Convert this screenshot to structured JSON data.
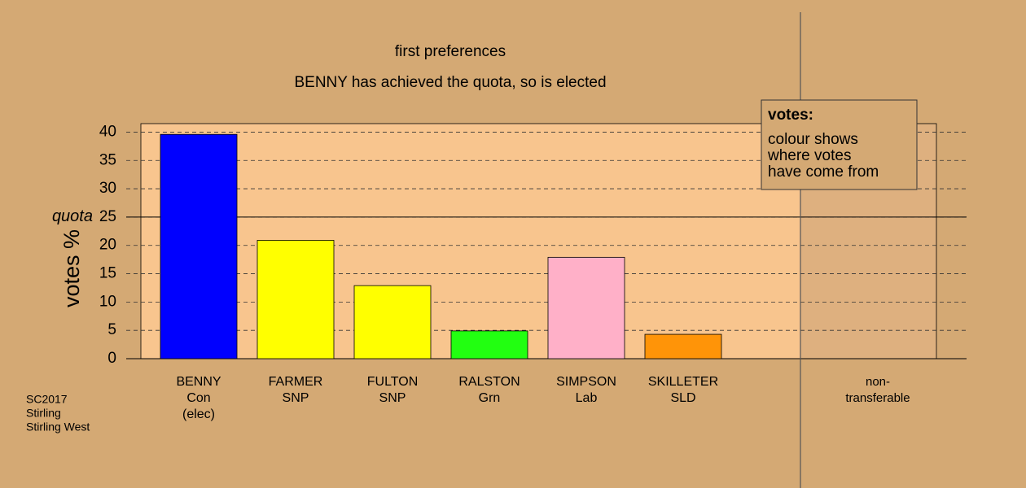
{
  "chart_data": {
    "type": "bar",
    "title": "first preferences",
    "subtitle": "BENNY has achieved the quota, so is elected",
    "y_label": "votes %",
    "categories": [
      [
        "BENNY",
        "Con",
        "(elec)"
      ],
      [
        "FARMER",
        "SNP"
      ],
      [
        "FULTON",
        "SNP"
      ],
      [
        "RALSTON",
        "Grn"
      ],
      [
        "SIMPSON",
        "Lab"
      ],
      [
        "SKILLETER",
        "SLD"
      ],
      [
        "non-",
        "transferable"
      ]
    ],
    "values": [
      39.6,
      20.9,
      12.9,
      4.9,
      17.9,
      4.3,
      0
    ],
    "colors": [
      "#0000ff",
      "#ffff00",
      "#ffff00",
      "#22ff11",
      "#ffb0c8",
      "#ff9408",
      "#ffffff"
    ],
    "ylim": [
      0,
      41.5
    ],
    "yticks": [
      0,
      5,
      10,
      15,
      20,
      25,
      30,
      35,
      40
    ],
    "grid": true,
    "quota": {
      "label": "quota",
      "value": 25
    },
    "legend": {
      "title": "votes:",
      "lines": [
        "colour shows",
        "where votes",
        "have come from"
      ]
    },
    "footer": [
      "SC2017",
      "Stirling",
      "Stirling West"
    ]
  }
}
